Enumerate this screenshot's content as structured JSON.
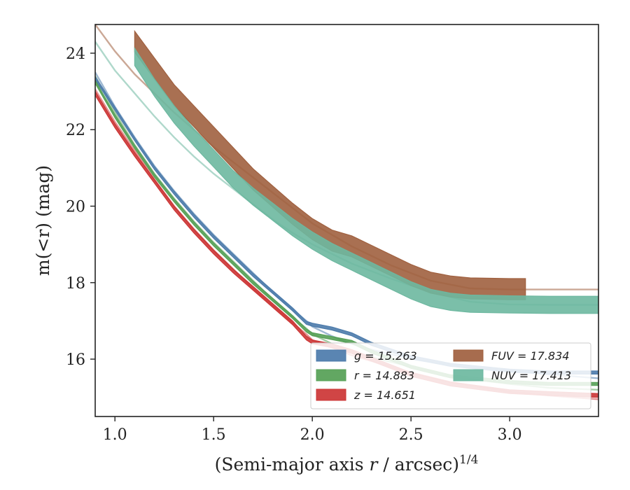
{
  "chart_data": {
    "type": "line",
    "xlabel_main": "(Semi-major axis ",
    "xlabel_var": "r",
    "xlabel_tail": " / arcsec)",
    "xlabel_sup": "1/4",
    "ylabel_main": "m(<r) (mag)",
    "xlim": [
      0.9,
      3.45
    ],
    "ylim": [
      24.75,
      14.5
    ],
    "xticks": [
      1.0,
      1.5,
      2.0,
      2.5,
      3.0
    ],
    "xtick_labels": [
      "1.0",
      "1.5",
      "2.0",
      "2.5",
      "3.0"
    ],
    "yticks": [
      16,
      18,
      20,
      22,
      24
    ],
    "ytick_labels": [
      "16",
      "18",
      "20",
      "22",
      "24"
    ],
    "legend_position": "lower-right",
    "legend": [
      {
        "label": "g = 15.263",
        "color": "#4c7bab"
      },
      {
        "label": "r = 14.883",
        "color": "#55a055"
      },
      {
        "label": "z = 14.651",
        "color": "#cc3535"
      },
      {
        "label": "FUV = 17.834",
        "color": "#a0603f"
      },
      {
        "label": "NUV = 17.413",
        "color": "#6db8a0"
      }
    ],
    "series": [
      {
        "name": "g",
        "color": "#4c7bab",
        "band_width": 0.08,
        "x": [
          0.9,
          1.0,
          1.1,
          1.2,
          1.3,
          1.4,
          1.5,
          1.6,
          1.7,
          1.8,
          1.9,
          1.97,
          2.0,
          2.1,
          2.2,
          2.3,
          2.5,
          2.7,
          3.0,
          3.2,
          3.45
        ],
        "y": [
          23.35,
          22.55,
          21.75,
          21.0,
          20.35,
          19.75,
          19.2,
          18.7,
          18.2,
          17.75,
          17.3,
          16.95,
          16.9,
          16.8,
          16.65,
          16.4,
          16.05,
          15.85,
          15.7,
          15.65,
          15.65
        ],
        "model_y": [
          23.5,
          22.6,
          21.8,
          21.05,
          20.4,
          19.8,
          19.25,
          18.75,
          18.25,
          17.75,
          17.3,
          17.0,
          16.85,
          16.6,
          16.4,
          16.25,
          16.0,
          15.85,
          15.7,
          15.6,
          15.5
        ]
      },
      {
        "name": "r",
        "color": "#55a055",
        "band_width": 0.08,
        "x": [
          0.9,
          1.0,
          1.1,
          1.2,
          1.3,
          1.4,
          1.5,
          1.6,
          1.7,
          1.8,
          1.9,
          1.97,
          2.0,
          2.1,
          2.2,
          2.3,
          2.5,
          2.7,
          3.0,
          3.2,
          3.45
        ],
        "y": [
          23.25,
          22.35,
          21.55,
          20.8,
          20.15,
          19.55,
          19.0,
          18.5,
          18.0,
          17.55,
          17.1,
          16.75,
          16.65,
          16.55,
          16.45,
          16.2,
          15.8,
          15.55,
          15.4,
          15.35,
          15.35
        ],
        "model_y": [
          23.4,
          22.45,
          21.6,
          20.85,
          20.2,
          19.6,
          19.05,
          18.55,
          18.05,
          17.55,
          17.1,
          16.8,
          16.65,
          16.4,
          16.2,
          16.05,
          15.8,
          15.55,
          15.35,
          15.25,
          15.2
        ]
      },
      {
        "name": "z",
        "color": "#cc3535",
        "band_width": 0.1,
        "x": [
          0.9,
          1.0,
          1.1,
          1.2,
          1.3,
          1.4,
          1.5,
          1.6,
          1.7,
          1.8,
          1.9,
          1.97,
          2.0,
          2.1,
          2.2,
          2.3,
          2.5,
          2.7,
          3.0,
          3.2,
          3.45
        ],
        "y": [
          22.95,
          22.1,
          21.35,
          20.65,
          19.95,
          19.35,
          18.8,
          18.3,
          17.85,
          17.4,
          16.95,
          16.55,
          16.45,
          16.35,
          16.2,
          16.0,
          15.6,
          15.35,
          15.15,
          15.1,
          15.05
        ],
        "model_y": [
          23.05,
          22.2,
          21.45,
          20.7,
          20.0,
          19.4,
          18.85,
          18.35,
          17.85,
          17.4,
          16.95,
          16.65,
          16.5,
          16.3,
          16.1,
          15.95,
          15.65,
          15.4,
          15.15,
          15.05,
          14.95
        ]
      },
      {
        "name": "FUV",
        "color": "#a0603f",
        "band_width": 0.55,
        "x": [
          1.1,
          1.2,
          1.3,
          1.4,
          1.5,
          1.6,
          1.7,
          1.8,
          1.9,
          2.0,
          2.1,
          2.2,
          2.3,
          2.4,
          2.5,
          2.6,
          2.7,
          2.8,
          2.9,
          3.0,
          3.08
        ],
        "y": [
          24.3,
          23.6,
          22.9,
          22.35,
          21.8,
          21.25,
          20.7,
          20.25,
          19.8,
          19.4,
          19.1,
          18.95,
          18.7,
          18.45,
          18.2,
          18.0,
          17.9,
          17.85,
          17.84,
          17.83,
          17.83
        ],
        "model_x": [
          0.9,
          1.0,
          1.1,
          1.2,
          1.3,
          1.4,
          1.5,
          1.6,
          1.7,
          1.8,
          1.9,
          2.0,
          2.2,
          2.4,
          2.6,
          2.8,
          3.0,
          3.2,
          3.45
        ],
        "model_y": [
          24.75,
          24.05,
          23.45,
          22.95,
          22.45,
          22.0,
          21.55,
          21.15,
          20.75,
          20.35,
          19.95,
          19.55,
          18.95,
          18.45,
          18.05,
          17.85,
          17.82,
          17.82,
          17.82
        ]
      },
      {
        "name": "NUV",
        "color": "#6db8a0",
        "band_width": 0.45,
        "x": [
          1.1,
          1.2,
          1.3,
          1.4,
          1.5,
          1.6,
          1.7,
          1.8,
          1.9,
          2.0,
          2.1,
          2.2,
          2.3,
          2.4,
          2.5,
          2.6,
          2.7,
          2.8,
          3.0,
          3.2,
          3.45
        ],
        "y": [
          23.9,
          23.1,
          22.4,
          21.8,
          21.25,
          20.7,
          20.25,
          19.85,
          19.45,
          19.1,
          18.8,
          18.55,
          18.3,
          18.05,
          17.8,
          17.6,
          17.5,
          17.45,
          17.43,
          17.42,
          17.42
        ],
        "model_x": [
          0.9,
          1.0,
          1.1,
          1.2,
          1.3,
          1.4,
          1.5,
          1.6,
          1.7,
          1.8,
          1.9,
          2.0,
          2.2,
          2.4,
          2.6,
          2.8,
          3.0,
          3.2,
          3.45
        ],
        "model_y": [
          24.3,
          23.55,
          22.95,
          22.35,
          21.8,
          21.3,
          20.85,
          20.45,
          20.05,
          19.65,
          19.3,
          19.0,
          18.5,
          18.1,
          17.75,
          17.5,
          17.43,
          17.42,
          17.42
        ]
      }
    ]
  }
}
